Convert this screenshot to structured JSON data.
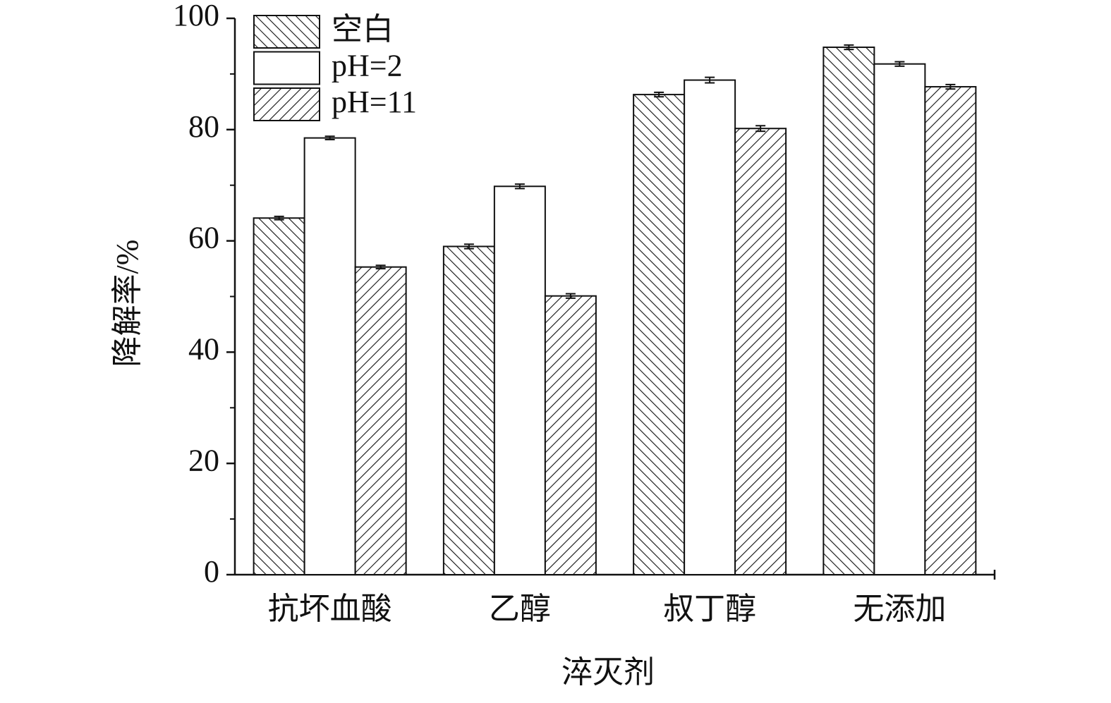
{
  "chart_data": {
    "type": "bar",
    "y_label": "降解率/%",
    "x_label": "淬灭剂",
    "categories": [
      "抗坏血酸",
      "乙醇",
      "叔丁醇",
      "无添加"
    ],
    "series": [
      {
        "name": "空白",
        "color": "#ffffff",
        "pattern": "backslash",
        "values": [
          64.1,
          59.0,
          86.3,
          94.8
        ],
        "errors": [
          0.3,
          0.4,
          0.4,
          0.4
        ]
      },
      {
        "name": "pH=2",
        "color": "#ffffff",
        "pattern": "none",
        "values": [
          78.5,
          69.8,
          88.9,
          91.8
        ],
        "errors": [
          0.3,
          0.4,
          0.5,
          0.4
        ]
      },
      {
        "name": "pH=11",
        "color": "#ffffff",
        "pattern": "slash",
        "values": [
          55.3,
          50.1,
          80.2,
          87.7
        ],
        "errors": [
          0.3,
          0.4,
          0.5,
          0.4
        ]
      }
    ],
    "ylim": [
      0,
      100
    ],
    "yticks": [
      0,
      20,
      40,
      60,
      80,
      100
    ],
    "minor_yticks": [
      10,
      30,
      50,
      70,
      90
    ],
    "legend": "top-left"
  }
}
